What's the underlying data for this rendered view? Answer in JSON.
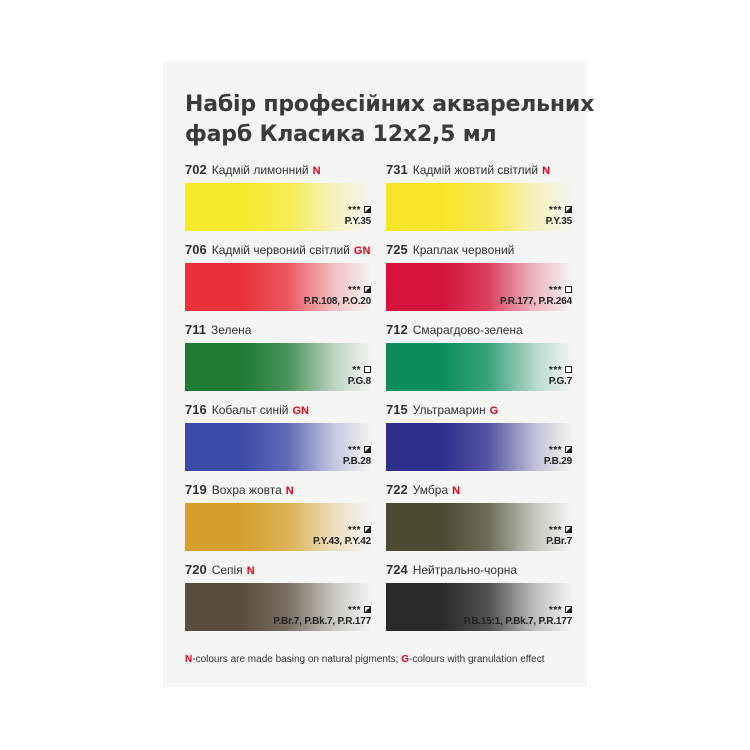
{
  "title": {
    "line1": "Набір професійних акварельних",
    "line2": "фарб Класика 12х2,5 мл"
  },
  "swatches": [
    {
      "num": "702",
      "name": "Кадмій лимонний",
      "flag": "N",
      "stars": "***",
      "box": "semi",
      "pigment": "P.Y.35",
      "color": "#f7ea2b",
      "col": 0,
      "row": 0
    },
    {
      "num": "731",
      "name": "Кадмій жовтий світлий",
      "flag": "N",
      "stars": "***",
      "box": "semi",
      "pigment": "P.Y.35",
      "color": "#f8e52a",
      "col": 1,
      "row": 0
    },
    {
      "num": "706",
      "name": "Кадмій червоний світлий",
      "flag": "GN",
      "stars": "***",
      "box": "semi",
      "pigment": "P.R.108, P.O.20",
      "color": "#e9313b",
      "col": 0,
      "row": 1
    },
    {
      "num": "725",
      "name": "Краплак червоний",
      "flag": "",
      "stars": "***",
      "box": "transparent",
      "pigment": "P.R.177, P.R.264",
      "color": "#d4143a",
      "col": 1,
      "row": 1
    },
    {
      "num": "711",
      "name": "Зелена",
      "flag": "",
      "stars": "**",
      "box": "transparent",
      "pigment": "P.G.8",
      "color": "#1f7a34",
      "col": 0,
      "row": 2
    },
    {
      "num": "712",
      "name": "Смарагдово-зелена",
      "flag": "",
      "stars": "***",
      "box": "transparent",
      "pigment": "P.G.7",
      "color": "#0b8e5c",
      "col": 1,
      "row": 2
    },
    {
      "num": "716",
      "name": "Кобальт синій",
      "flag": "GN",
      "stars": "***",
      "box": "semi",
      "pigment": "P.B.28",
      "color": "#3c4aa8",
      "col": 0,
      "row": 3
    },
    {
      "num": "715",
      "name": "Ультрамарин",
      "flag": "G",
      "stars": "***",
      "box": "semi",
      "pigment": "P.B.29",
      "color": "#2e2e8f",
      "col": 1,
      "row": 3
    },
    {
      "num": "719",
      "name": "Вохра жовта",
      "flag": "N",
      "stars": "***",
      "box": "semi",
      "pigment": "P.Y.43, P.Y.42",
      "color": "#d6a02e",
      "col": 0,
      "row": 4
    },
    {
      "num": "722",
      "name": "Умбра",
      "flag": "N",
      "stars": "***",
      "box": "semi",
      "pigment": "P.Br.7",
      "color": "#4d4a33",
      "col": 1,
      "row": 4
    },
    {
      "num": "720",
      "name": "Сепія",
      "flag": "N",
      "stars": "***",
      "box": "semi",
      "pigment": "P.Br.7, P.Bk.7, P.R.177",
      "color": "#5a4d3d",
      "col": 0,
      "row": 5
    },
    {
      "num": "724",
      "name": "Нейтрально-чорна",
      "flag": "",
      "stars": "***",
      "box": "semi",
      "pigment": "P.B.15:1, P.Bk.7, P.R.177",
      "color": "#2a2a2c",
      "col": 1,
      "row": 5
    }
  ],
  "footer": {
    "n_flag": "N",
    "n_text": "-colours are made basing on natural pigments; ",
    "g_flag": "G",
    "g_text": "-colours with granulation effect"
  }
}
